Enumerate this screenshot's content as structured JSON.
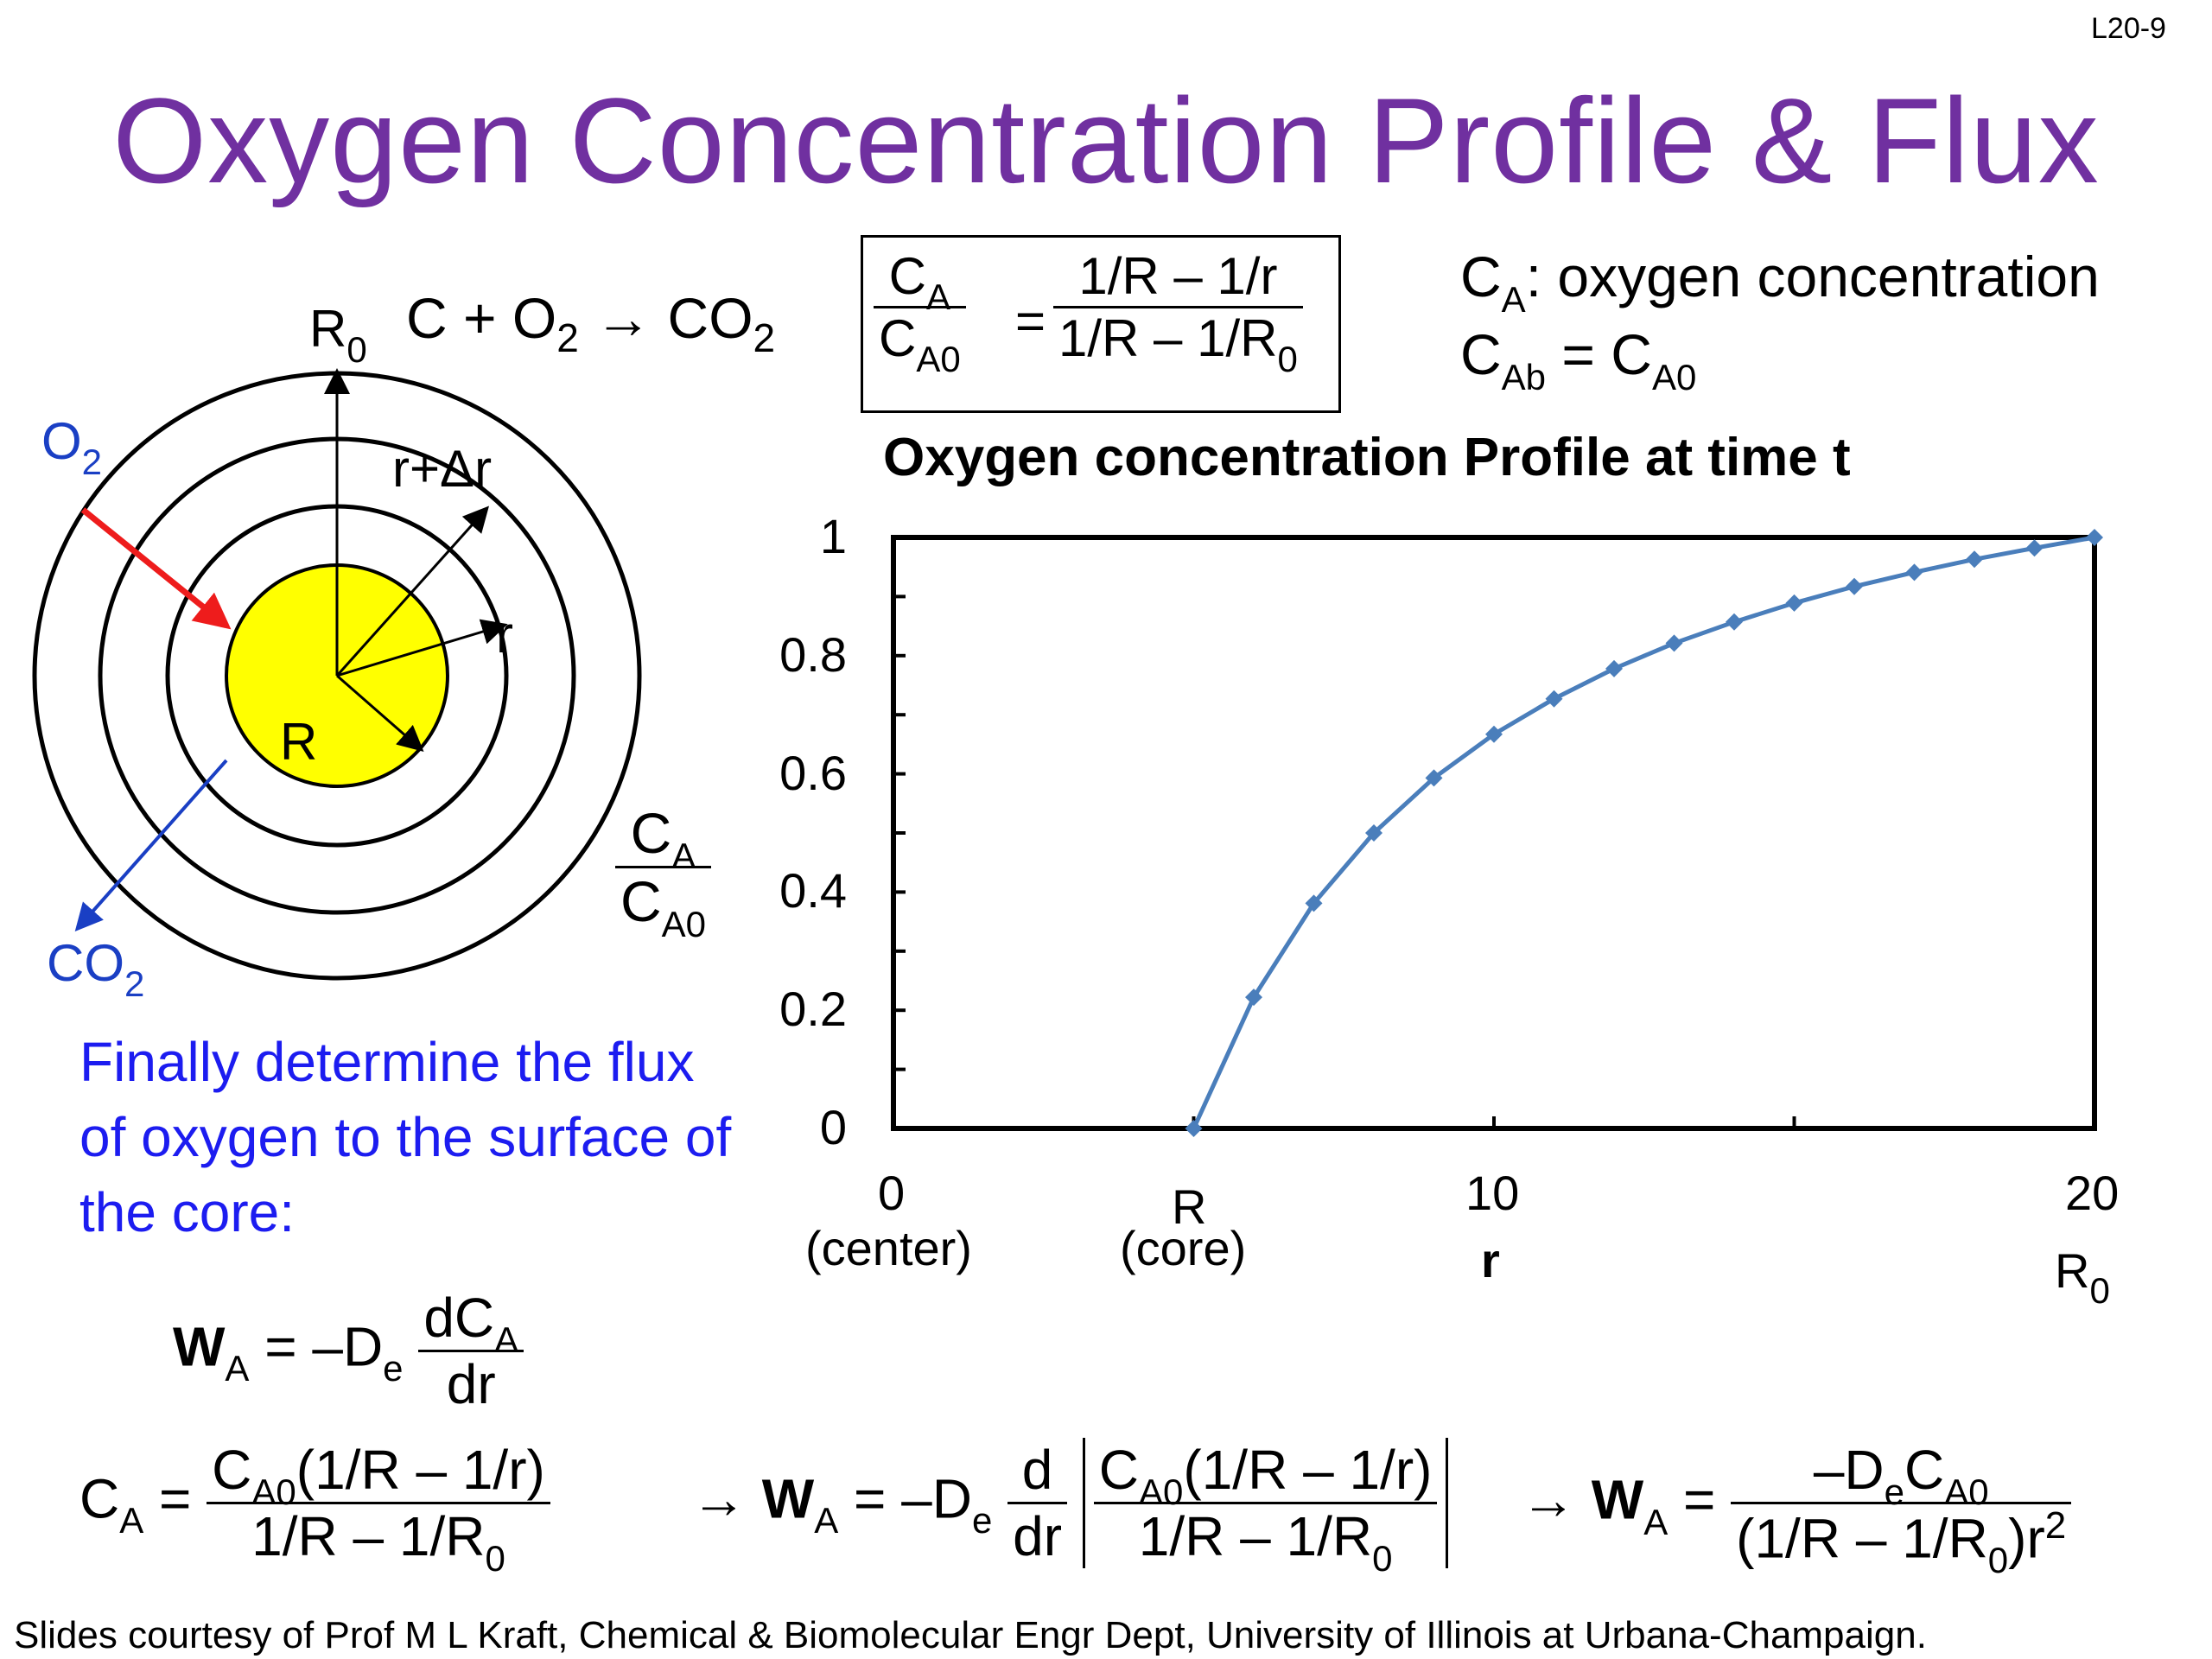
{
  "slide": {
    "number": "L20-9",
    "title": "Oxygen Concentration Profile & Flux",
    "footer": "Slides courtesy of Prof M L Kraft, Chemical & Biomolecular Engr Dept, University of Illinois at Urbana-Champaign."
  },
  "diagram": {
    "reaction": {
      "c": "C",
      "plus": "+",
      "o": "O",
      "o_sub": "2",
      "arrow": "→",
      "co": "CO",
      "co_sub": "2"
    },
    "labels": {
      "r0": "R",
      "r0_sub": "0",
      "o2": "O",
      "o2_sub": "2",
      "r_plus_dr": "r+Δr",
      "r": "r",
      "R": "R",
      "co2": "CO",
      "co2_sub": "2"
    },
    "colors": {
      "core": "#ffff00",
      "o2_arrow": "#ee1c1c",
      "co2_arrow": "#1a3fc4"
    }
  },
  "boxed_equation": {
    "lhs_num": "C",
    "lhs_num_sub": "A",
    "lhs_den": "C",
    "lhs_den_sub": "A0",
    "equals": "=",
    "rhs_num": "1/R – 1/r",
    "rhs_den_main": "1/R – 1/R",
    "rhs_den_sub": "0"
  },
  "definitions": {
    "line1_c": "C",
    "line1_sub": "A",
    "line1_text": ": oxygen concentration",
    "line2_c": "C",
    "line2_sub": "Ab",
    "line2_eq": " = C",
    "line2_sub2": "A0"
  },
  "chart_data": {
    "type": "line",
    "title": "Oxygen concentration Profile at time t",
    "xlabel": "r",
    "ylabel": "CA/CA0",
    "x": [
      5,
      6,
      7,
      8,
      9,
      10,
      11,
      12,
      13,
      14,
      15,
      16,
      17,
      18,
      19,
      20
    ],
    "values": [
      0,
      0.222,
      0.381,
      0.5,
      0.593,
      0.667,
      0.727,
      0.778,
      0.821,
      0.857,
      0.889,
      0.917,
      0.941,
      0.963,
      0.982,
      1.0
    ],
    "xlim": [
      0,
      20
    ],
    "ylim": [
      0,
      1
    ],
    "yticks": [
      "0",
      "0.2",
      "0.4",
      "0.6",
      "0.8",
      "1"
    ],
    "xticks": [
      {
        "value": "0",
        "caption": "(center)"
      },
      {
        "value": "R",
        "caption": "(core)"
      },
      {
        "value": "10",
        "caption": "r"
      },
      {
        "value": "20",
        "caption": "R",
        "caption_sub": "0"
      }
    ],
    "ylabel_num": "C",
    "ylabel_num_sub": "A",
    "ylabel_den": "C",
    "ylabel_den_sub": "A0",
    "series_color": "#4a7ebb"
  },
  "text": {
    "flux_prompt": "Finally determine the flux of oxygen to the surface of the core:"
  },
  "equations": {
    "wa": "W",
    "wa_sub": "A",
    "wa_rhs": "= –D",
    "wa_rhs_sub": "e",
    "dca": "dC",
    "dca_sub": "A",
    "dr": "dr",
    "ca": "C",
    "ca_sub": "A",
    "eq": "=",
    "ca_num": "C",
    "ca_num_sub": "A0",
    "ca_num_rest": "(1/R – 1/r)",
    "ca_den": "1/R – 1/R",
    "ca_den_sub": "0",
    "arrow": "→",
    "d": "d",
    "dr2": "dr",
    "final_num": "–D",
    "final_num_sub": "e",
    "final_num_c": "C",
    "final_num_c_sub": "A0",
    "final_den": "(1/R – 1/R",
    "final_den_sub": "0",
    "final_den_rest": ")r",
    "final_den_sup": "2"
  }
}
